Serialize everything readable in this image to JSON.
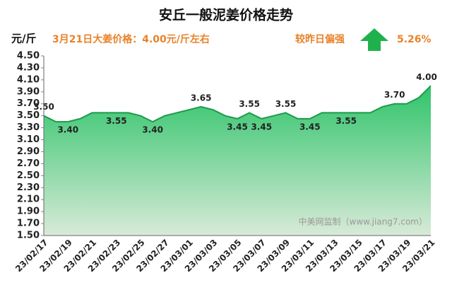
{
  "chart_data": {
    "type": "area",
    "title": "安丘一般泥姜价格走势",
    "y_label": "元/斤",
    "headline": "3月21日大姜价格：4.00元/斤左右",
    "trend_label": "较昨日偏强",
    "change": "5.26%",
    "watermark": "中美网监制（www.jiang7.com）",
    "categories": [
      "23/02/17",
      null,
      "23/02/19",
      null,
      "23/02/21",
      null,
      "23/02/23",
      null,
      "23/02/25",
      null,
      "23/02/27",
      null,
      "23/03/01",
      null,
      "23/03/03",
      null,
      "23/03/05",
      null,
      "23/03/07",
      null,
      "23/03/09",
      null,
      "23/03/11",
      null,
      "23/03/13",
      null,
      "23/03/15",
      null,
      "23/03/17",
      null,
      "23/03/19",
      null,
      "23/03/21"
    ],
    "values": [
      3.5,
      3.4,
      3.4,
      3.45,
      3.55,
      3.55,
      3.55,
      3.55,
      3.5,
      3.4,
      3.5,
      3.55,
      3.6,
      3.65,
      3.6,
      3.5,
      3.45,
      3.55,
      3.45,
      3.5,
      3.55,
      3.45,
      3.45,
      3.55,
      3.55,
      3.55,
      3.55,
      3.55,
      3.65,
      3.7,
      3.7,
      3.8,
      4.0
    ],
    "value_labels": [
      "3.50",
      null,
      "3.40",
      null,
      null,
      null,
      "3.55",
      null,
      null,
      "3.40",
      null,
      null,
      null,
      "3.65",
      null,
      null,
      "3.45",
      "3.55",
      "3.45",
      null,
      "3.55",
      null,
      "3.45",
      null,
      null,
      "3.55",
      null,
      null,
      null,
      "3.70",
      null,
      null,
      "4.00"
    ],
    "color": "#1f9a4c",
    "ylim": [
      1.5,
      4.5
    ],
    "yticks": [
      {
        "value": 1.5,
        "label": "1.50"
      },
      {
        "value": 1.7,
        "label": "1.70"
      },
      {
        "value": 1.9,
        "label": "1.90"
      },
      {
        "value": 2.1,
        "label": "2.10"
      },
      {
        "value": 2.3,
        "label": "2.30"
      },
      {
        "value": 2.5,
        "label": "2.50"
      },
      {
        "value": 2.7,
        "label": "2.70"
      },
      {
        "value": 2.9,
        "label": "2.90"
      },
      {
        "value": 3.1,
        "label": "3.10"
      },
      {
        "value": 3.3,
        "label": "3.30"
      },
      {
        "value": 3.5,
        "label": "3.50"
      },
      {
        "value": 3.7,
        "label": "3.70"
      },
      {
        "value": 3.9,
        "label": "3.90"
      },
      {
        "value": 4.1,
        "label": "4.10"
      },
      {
        "value": 4.3,
        "label": "4.30"
      },
      {
        "value": 4.5,
        "label": "4.50"
      }
    ],
    "grid": false
  }
}
